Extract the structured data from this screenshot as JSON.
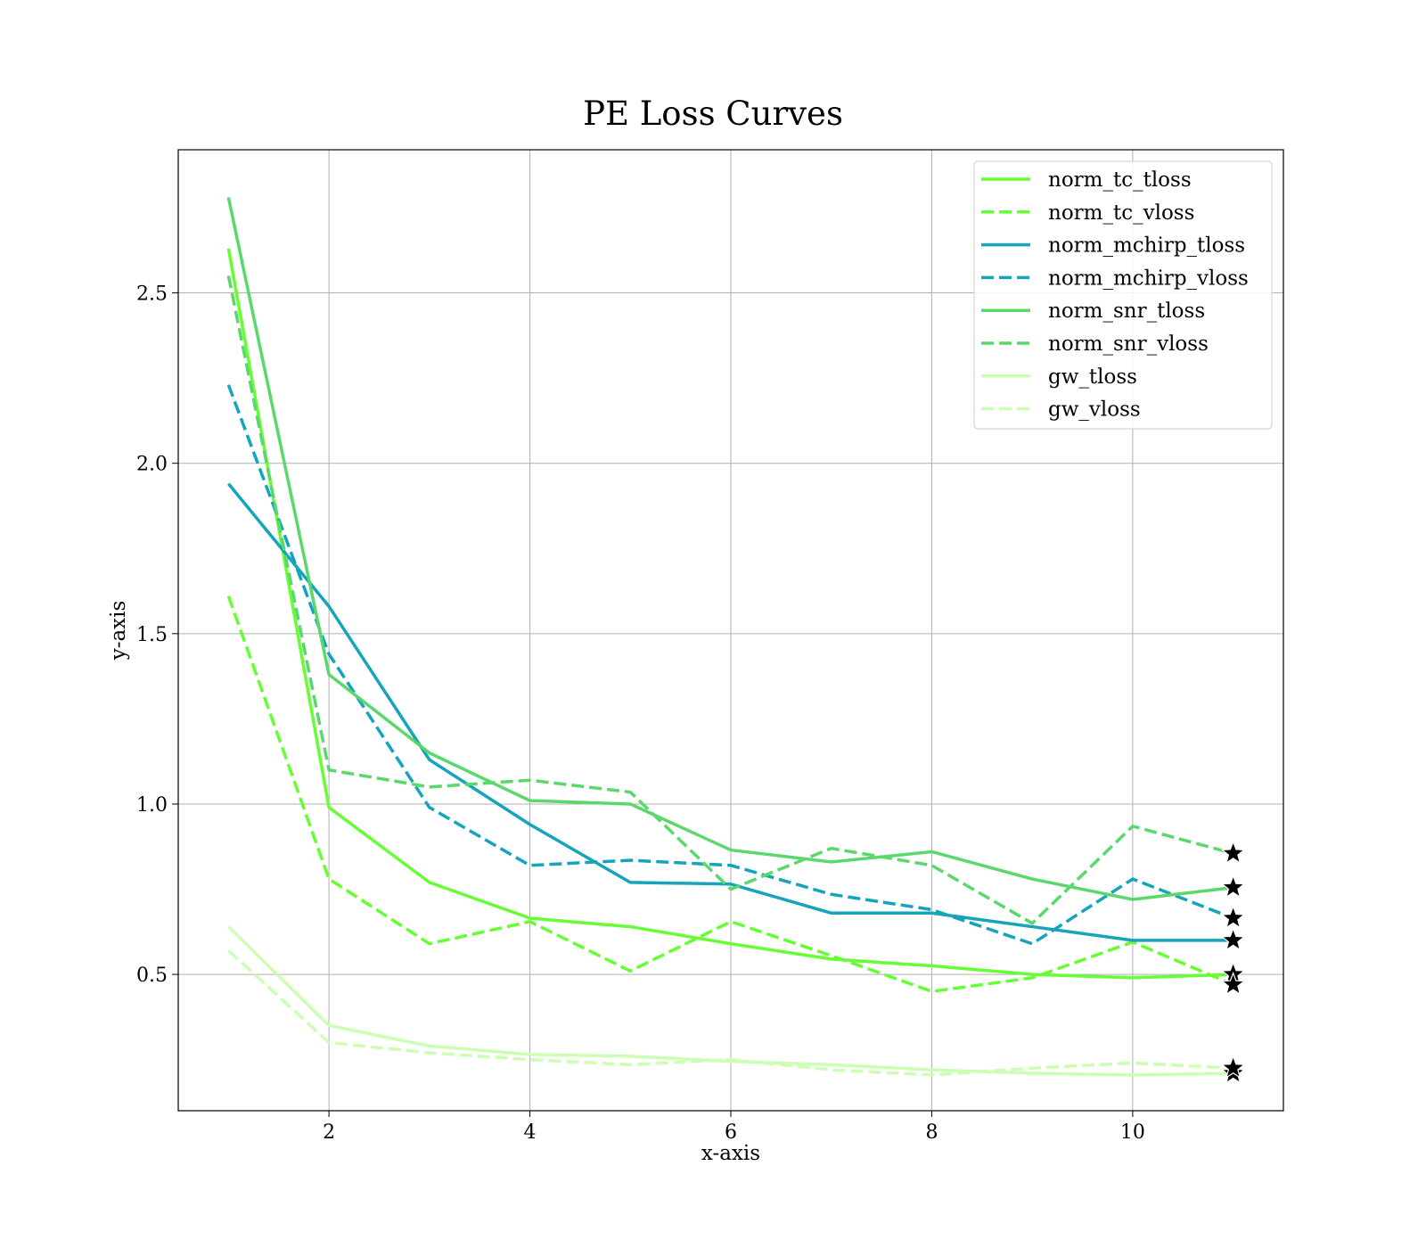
{
  "chart_data": {
    "type": "line",
    "title": "PE Loss Curves",
    "xlabel": "x-axis",
    "ylabel": "y-axis",
    "xlim": [
      0.5,
      11.5
    ],
    "ylim": [
      0.1,
      2.92
    ],
    "xticks": [
      2,
      4,
      6,
      8,
      10
    ],
    "xtick_labels": [
      "2",
      "4",
      "6",
      "8",
      "10"
    ],
    "yticks": [
      0.5,
      1.0,
      1.5,
      2.0,
      2.5
    ],
    "ytick_labels": [
      "0.5",
      "1.0",
      "1.5",
      "2.0",
      "2.5"
    ],
    "grid": true,
    "legend_position": "top-right",
    "x": [
      1,
      2,
      3,
      4,
      5,
      6,
      7,
      8,
      9,
      10,
      11
    ],
    "series": [
      {
        "name": "norm_tc_tloss",
        "color": "#66ff33",
        "dash": "solid",
        "values": [
          2.63,
          0.99,
          0.77,
          0.665,
          0.64,
          0.59,
          0.545,
          0.525,
          0.5,
          0.49,
          0.5
        ]
      },
      {
        "name": "norm_tc_vloss",
        "color": "#66ff33",
        "dash": "dashed",
        "values": [
          1.61,
          0.78,
          0.59,
          0.655,
          0.51,
          0.655,
          0.555,
          0.45,
          0.49,
          0.595,
          0.47
        ]
      },
      {
        "name": "norm_mchirp_tloss",
        "color": "#16a4bc",
        "dash": "solid",
        "values": [
          1.94,
          1.58,
          1.13,
          0.94,
          0.77,
          0.765,
          0.68,
          0.68,
          0.64,
          0.6,
          0.6
        ]
      },
      {
        "name": "norm_mchirp_vloss",
        "color": "#16a4bc",
        "dash": "dashed",
        "values": [
          2.23,
          1.44,
          0.99,
          0.82,
          0.835,
          0.82,
          0.735,
          0.69,
          0.59,
          0.78,
          0.665
        ]
      },
      {
        "name": "norm_snr_tloss",
        "color": "#5ad86c",
        "dash": "solid",
        "values": [
          2.78,
          1.38,
          1.15,
          1.01,
          1.0,
          0.865,
          0.83,
          0.86,
          0.78,
          0.72,
          0.755
        ]
      },
      {
        "name": "norm_snr_vloss",
        "color": "#5ad86c",
        "dash": "dashed",
        "values": [
          2.55,
          1.1,
          1.05,
          1.07,
          1.035,
          0.75,
          0.87,
          0.82,
          0.65,
          0.935,
          0.855
        ]
      },
      {
        "name": "gw_tloss",
        "color": "#ccffb3",
        "dash": "solid",
        "values": [
          0.64,
          0.35,
          0.29,
          0.265,
          0.26,
          0.245,
          0.235,
          0.22,
          0.21,
          0.205,
          0.21
        ]
      },
      {
        "name": "gw_vloss",
        "color": "#ccffb3",
        "dash": "dashed",
        "values": [
          0.57,
          0.3,
          0.27,
          0.25,
          0.235,
          0.25,
          0.22,
          0.205,
          0.225,
          0.24,
          0.225
        ]
      }
    ],
    "end_marker": "star",
    "end_marker_color": "#000000"
  }
}
